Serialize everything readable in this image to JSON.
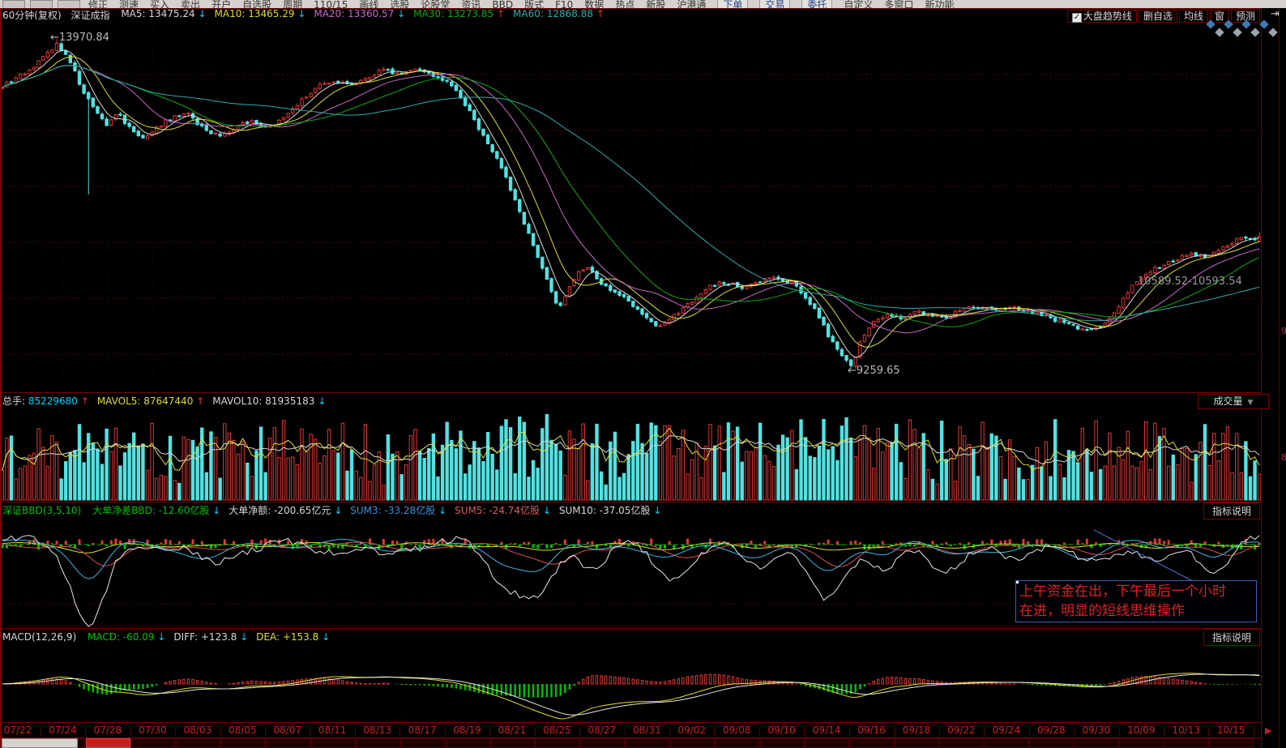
{
  "menu_bar": {
    "items": [
      "修正",
      "测速",
      "买入",
      "卖出",
      "开户",
      "自选股",
      "周期",
      "110/15",
      "画线",
      "选股",
      "论股堂",
      "资讯",
      "BBD",
      "版式",
      "F10",
      "数据",
      "热点",
      "新股",
      "沪港通",
      "下单",
      "交易",
      "委托",
      "自定义",
      "多窗口",
      "新功能"
    ]
  },
  "chart_header": {
    "period": "60分钟(复权)",
    "symbol": "深证成指",
    "mas": [
      {
        "label": "MA5:",
        "value": "13475.24",
        "color": "#d8d8d8",
        "arrow": "down"
      },
      {
        "label": "MA10:",
        "value": "13465.29",
        "color": "#dede30",
        "arrow": "down"
      },
      {
        "label": "MA20:",
        "value": "13360.57",
        "color": "#c868c8",
        "arrow": "down"
      },
      {
        "label": "MA30:",
        "value": "13273.85",
        "color": "#14a814",
        "arrow": "up"
      },
      {
        "label": "MA60:",
        "value": "12868.88",
        "color": "#32aaaa",
        "arrow": "up"
      }
    ]
  },
  "top_right": {
    "checkbox_label": "大盘趋势线",
    "checkbox_checked": true,
    "buttons": [
      "删自选",
      "均线",
      "窗",
      "预测"
    ],
    "arrow_button": "⇥"
  },
  "main_chart": {
    "peak": "13970.84",
    "gap": "10589.52-10593.54",
    "low": "9259.65"
  },
  "volume_panel": {
    "items": [
      {
        "label": "总手:",
        "value": "85229680",
        "label_color": "#d8d8d8",
        "value_color": "#00d2ff",
        "arrow": "up"
      },
      {
        "label": "MAVOL5:",
        "value": "87647440",
        "label_color": "#dede30",
        "value_color": "#dede30",
        "arrow": "up"
      },
      {
        "label": "MAVOL10:",
        "value": "81935183",
        "label_color": "#d8d8d8",
        "value_color": "#d8d8d8",
        "arrow": "down"
      }
    ],
    "selector": "成交量"
  },
  "bbd_panel": {
    "title": "深证BBD(3,5,10)",
    "title_color": "#00c000",
    "items": [
      {
        "text": "大单净差BBD: -12.60亿股",
        "color": "#00c000"
      },
      {
        "text": "大单净额: -200.65亿元",
        "color": "#d8d8d8"
      },
      {
        "text": "SUM3: -33.28亿股",
        "color": "#3b8fd6"
      },
      {
        "text": "SUM5: -24.74亿股",
        "color": "#d86060"
      },
      {
        "text": "SUM10: -37.05亿股",
        "color": "#d8d8d8"
      }
    ],
    "button": "指标说明",
    "note1": "上午资金在出，下午最后一个小时",
    "note2": "在进，明显的短线思维操作"
  },
  "macd_panel": {
    "title": "MACD(12,26,9)",
    "items": [
      {
        "text": "MACD: -60.09",
        "color": "#00c000"
      },
      {
        "text": "DIFF: +123.8",
        "color": "#d8d8d8"
      },
      {
        "text": "DEA: +153.8",
        "color": "#dede30"
      }
    ],
    "button": "指标说明"
  },
  "x_axis": {
    "dates": [
      "07/22",
      "07/24",
      "07/28",
      "07/30",
      "08/03",
      "08/05",
      "08/07",
      "08/11",
      "08/13",
      "08/17",
      "08/19",
      "08/21",
      "08/25",
      "08/27",
      "08/31",
      "09/02",
      "09/08",
      "09/10",
      "09/14",
      "09/16",
      "09/18",
      "09/22",
      "09/24",
      "09/28",
      "09/30",
      "10/09",
      "10/13",
      "10/15"
    ]
  },
  "colors": {
    "up": "#e23535",
    "down": "#52e2e2",
    "ma": [
      "#d8d8d8",
      "#dede30",
      "#c868c8",
      "#14a814",
      "#32aaaa"
    ],
    "grid": "#4f0202",
    "vgrid": "#3f0202",
    "border": "#7a0000",
    "date_text": "#cc2020",
    "bbd_zero": "#00b400",
    "macd_green": "#00c000",
    "note_border": "#3a5fb0",
    "callout": "#4a6fd0"
  },
  "chart_data": {
    "type": "candlestick+indicators",
    "instrument": "深证成指",
    "period": "60分钟(复权)",
    "bars": 278,
    "key_levels": {
      "high": 13970.84,
      "low": 9259.65,
      "gap_low": 10589.52,
      "gap_high": 10593.54
    },
    "ma_display": {
      "MA5": 13475.24,
      "MA10": 13465.29,
      "MA20": 13360.57,
      "MA30": 13273.85,
      "MA60": 12868.88
    },
    "volume_display": {
      "total": 85229680,
      "MAVOL5": 87647440,
      "MAVOL10": 81935183
    },
    "bbd_display": {
      "BBD": -12.6,
      "net_amount": -200.65,
      "SUM3": -33.28,
      "SUM5": -24.74,
      "SUM10": -37.05
    },
    "macd_display": {
      "MACD": -60.09,
      "DIFF": 123.8,
      "DEA": 153.8
    },
    "price_anchors": [
      [
        0.0,
        13300
      ],
      [
        0.013,
        13420
      ],
      [
        0.03,
        13650
      ],
      [
        0.044,
        13900
      ],
      [
        0.05,
        13750
      ],
      [
        0.058,
        13480
      ],
      [
        0.066,
        13150
      ],
      [
        0.075,
        12950
      ],
      [
        0.083,
        12750
      ],
      [
        0.092,
        12900
      ],
      [
        0.103,
        12650
      ],
      [
        0.113,
        12550
      ],
      [
        0.122,
        12700
      ],
      [
        0.135,
        12850
      ],
      [
        0.148,
        12900
      ],
      [
        0.16,
        12680
      ],
      [
        0.173,
        12580
      ],
      [
        0.185,
        12700
      ],
      [
        0.198,
        12800
      ],
      [
        0.212,
        12700
      ],
      [
        0.225,
        12850
      ],
      [
        0.238,
        13100
      ],
      [
        0.25,
        13280
      ],
      [
        0.263,
        13380
      ],
      [
        0.278,
        13300
      ],
      [
        0.29,
        13420
      ],
      [
        0.303,
        13520
      ],
      [
        0.315,
        13480
      ],
      [
        0.328,
        13550
      ],
      [
        0.34,
        13480
      ],
      [
        0.352,
        13380
      ],
      [
        0.362,
        13200
      ],
      [
        0.373,
        12900
      ],
      [
        0.385,
        12500
      ],
      [
        0.395,
        12200
      ],
      [
        0.405,
        11800
      ],
      [
        0.415,
        11350
      ],
      [
        0.425,
        10900
      ],
      [
        0.435,
        10450
      ],
      [
        0.443,
        10100
      ],
      [
        0.45,
        10400
      ],
      [
        0.458,
        10650
      ],
      [
        0.466,
        10700
      ],
      [
        0.475,
        10500
      ],
      [
        0.483,
        10400
      ],
      [
        0.493,
        10300
      ],
      [
        0.503,
        10150
      ],
      [
        0.513,
        10000
      ],
      [
        0.523,
        9850
      ],
      [
        0.53,
        9950
      ],
      [
        0.54,
        10100
      ],
      [
        0.55,
        10250
      ],
      [
        0.56,
        10400
      ],
      [
        0.57,
        10500
      ],
      [
        0.58,
        10480
      ],
      [
        0.59,
        10420
      ],
      [
        0.6,
        10480
      ],
      [
        0.61,
        10560
      ],
      [
        0.62,
        10520
      ],
      [
        0.63,
        10480
      ],
      [
        0.638,
        10300
      ],
      [
        0.648,
        10050
      ],
      [
        0.658,
        9700
      ],
      [
        0.668,
        9420
      ],
      [
        0.676,
        9300
      ],
      [
        0.684,
        9700
      ],
      [
        0.694,
        9950
      ],
      [
        0.705,
        10050
      ],
      [
        0.716,
        9950
      ],
      [
        0.727,
        10080
      ],
      [
        0.738,
        10020
      ],
      [
        0.75,
        9980
      ],
      [
        0.762,
        10100
      ],
      [
        0.775,
        10150
      ],
      [
        0.788,
        10100
      ],
      [
        0.8,
        10150
      ],
      [
        0.812,
        10100
      ],
      [
        0.825,
        10050
      ],
      [
        0.838,
        9950
      ],
      [
        0.85,
        9880
      ],
      [
        0.862,
        9800
      ],
      [
        0.872,
        9850
      ],
      [
        0.882,
        10000
      ],
      [
        0.892,
        10250
      ],
      [
        0.9,
        10480
      ],
      [
        0.908,
        10600
      ],
      [
        0.918,
        10700
      ],
      [
        0.928,
        10800
      ],
      [
        0.938,
        10850
      ],
      [
        0.948,
        10900
      ],
      [
        0.958,
        10850
      ],
      [
        0.968,
        10950
      ],
      [
        0.978,
        11050
      ],
      [
        0.988,
        11150
      ],
      [
        1.0,
        11120
      ]
    ]
  }
}
